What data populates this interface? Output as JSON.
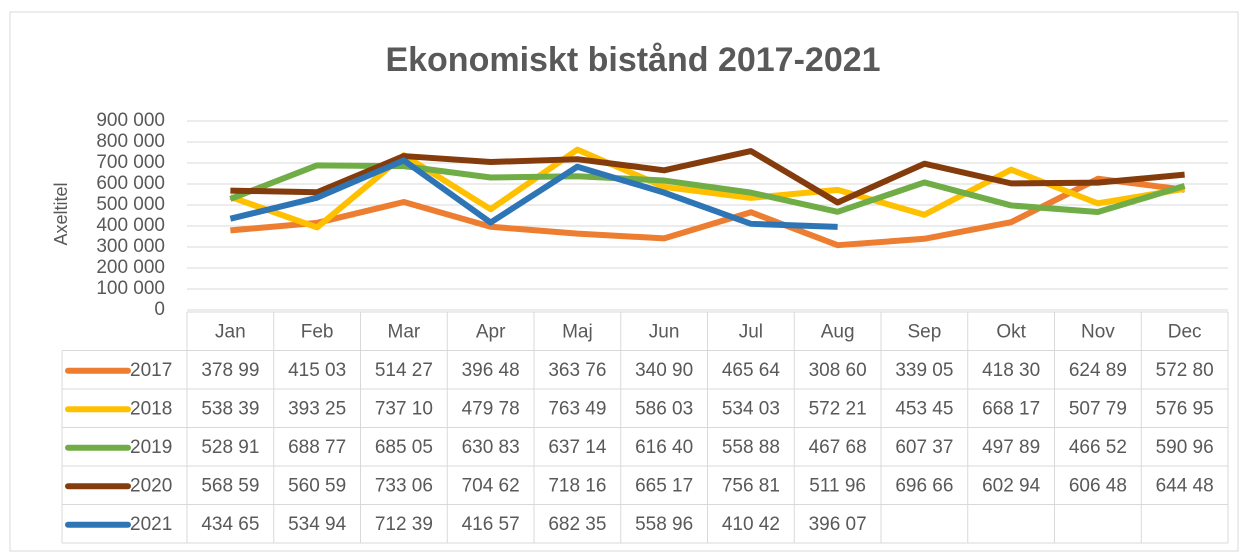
{
  "chart_data": {
    "type": "line",
    "title": "Ekonomiskt bistånd 2017-2021",
    "y_label": "Axeltitel",
    "categories": [
      "Jan",
      "Feb",
      "Mar",
      "Apr",
      "Maj",
      "Jun",
      "Jul",
      "Aug",
      "Sep",
      "Okt",
      "Nov",
      "Dec"
    ],
    "ylim": [
      0,
      900000
    ],
    "yticks": [
      0,
      {
        "value": 100000,
        "label": "100 000"
      },
      {
        "value": 200000,
        "label": "200 000"
      },
      {
        "value": 300000,
        "label": "300 000"
      },
      {
        "value": 400000,
        "label": "400 000"
      },
      {
        "value": 500000,
        "label": "500 000"
      },
      {
        "value": 600000,
        "label": "600 000"
      },
      {
        "value": 700000,
        "label": "700 000"
      },
      {
        "value": 800000,
        "label": "800 000"
      },
      {
        "value": 900000,
        "label": "900 000"
      }
    ],
    "grid": true,
    "series": [
      {
        "name": "2017",
        "color": "#ed7d31",
        "values": [
          378990,
          415030,
          514270,
          396480,
          363760,
          340900,
          465640,
          308600,
          339050,
          418300,
          624890,
          572800
        ],
        "value_labels": [
          "378 99",
          "415 03",
          "514 27",
          "396 48",
          "363 76",
          "340 90",
          "465 64",
          "308 60",
          "339 05",
          "418 30",
          "624 89",
          "572 80"
        ]
      },
      {
        "name": "2018",
        "color": "#ffc000",
        "values": [
          538390,
          393250,
          737100,
          479780,
          763490,
          586030,
          534030,
          572210,
          453450,
          668170,
          507790,
          576950
        ],
        "value_labels": [
          "538 39",
          "393 25",
          "737 10",
          "479 78",
          "763 49",
          "586 03",
          "534 03",
          "572 21",
          "453 45",
          "668 17",
          "507 79",
          "576 95"
        ]
      },
      {
        "name": "2019",
        "color": "#70ad47",
        "values": [
          528910,
          688770,
          685050,
          630830,
          637140,
          616400,
          558880,
          467680,
          607370,
          497890,
          466520,
          590960
        ],
        "value_labels": [
          "528 91",
          "688 77",
          "685 05",
          "630 83",
          "637 14",
          "616 40",
          "558 88",
          "467 68",
          "607 37",
          "497 89",
          "466 52",
          "590 96"
        ]
      },
      {
        "name": "2020",
        "color": "#843c0c",
        "values": [
          568590,
          560590,
          733060,
          704620,
          718160,
          665170,
          756810,
          511960,
          696660,
          602940,
          606480,
          644480
        ],
        "value_labels": [
          "568 59",
          "560 59",
          "733 06",
          "704 62",
          "718 16",
          "665 17",
          "756 81",
          "511 96",
          "696 66",
          "602 94",
          "606 48",
          "644 48"
        ]
      },
      {
        "name": "2021",
        "color": "#2e75b6",
        "values": [
          434650,
          534940,
          712390,
          416570,
          682350,
          558960,
          410420,
          396070,
          null,
          null,
          null,
          null
        ],
        "value_labels": [
          "434 65",
          "534 94",
          "712 39",
          "416 57",
          "682 35",
          "558 96",
          "410 42",
          "396 07",
          null,
          null,
          null,
          null
        ]
      }
    ]
  }
}
